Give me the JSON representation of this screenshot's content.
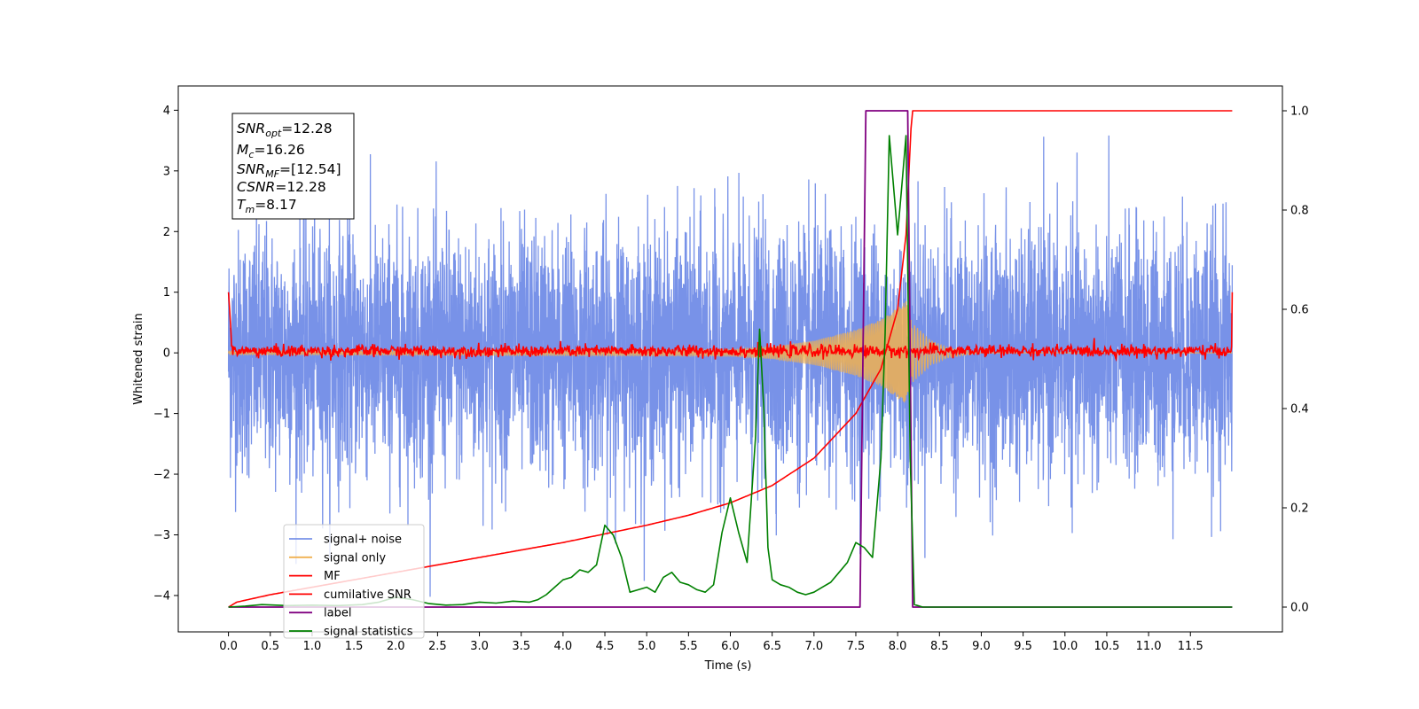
{
  "chart_data": {
    "type": "line",
    "title": "",
    "xlabel": "Time (s)",
    "ylabel": "Whitened strain",
    "xlim": [
      -0.6,
      12.6
    ],
    "ylim_left": [
      -4.6,
      4.4
    ],
    "ylim_right": [
      -0.05,
      1.05
    ],
    "x_ticks": [
      "0.0",
      "0.5",
      "1.0",
      "1.5",
      "2.0",
      "2.5",
      "3.0",
      "3.5",
      "4.0",
      "4.5",
      "5.0",
      "5.5",
      "6.0",
      "6.5",
      "7.0",
      "7.5",
      "8.0",
      "8.5",
      "9.0",
      "9.5",
      "10.0",
      "10.5",
      "11.0",
      "11.5"
    ],
    "y_ticks_left": [
      "4",
      "3",
      "2",
      "1",
      "0",
      "−1",
      "−2",
      "−3",
      "−4"
    ],
    "y_ticks_right": [
      "1.0",
      "0.8",
      "0.6",
      "0.4",
      "0.2",
      "0.0"
    ],
    "colors": {
      "signal_noise": "#7892e8",
      "signal_only": "#f0b050",
      "mf": "#ff0000",
      "cumulative_snr": "#ff0000",
      "label": "#800080",
      "signal_statistics": "#008000"
    },
    "legend": {
      "placement": "lower-left",
      "entries": [
        "signal+ noise",
        "signal only",
        "MF",
        "cumilative SNR",
        "label",
        "signal statistics"
      ]
    },
    "annotations": {
      "placement": "upper-left",
      "lines": [
        {
          "main": "SNR",
          "sub": "opt",
          "value": "=12.28"
        },
        {
          "main": "M",
          "sub": "c",
          "value": "=16.26"
        },
        {
          "main": "SNR",
          "sub": "MF",
          "value": "=[12.54]"
        },
        {
          "main": "CSNR",
          "sub": "",
          "value": "=12.28"
        },
        {
          "main": "T",
          "sub": "m",
          "value": "=8.17"
        }
      ]
    },
    "series": [
      {
        "name": "signal+ noise",
        "axis": "left",
        "x_range": [
          0,
          12
        ],
        "noise_std": 1.0,
        "y_extent": [
          -4.1,
          3.95
        ]
      },
      {
        "name": "signal only",
        "axis": "left",
        "envelope": {
          "x": [
            0,
            6.0,
            6.5,
            7.0,
            7.5,
            7.8,
            8.0,
            8.1,
            8.17,
            8.4,
            8.6,
            9.0
          ],
          "amp": [
            0.03,
            0.05,
            0.1,
            0.2,
            0.38,
            0.55,
            0.75,
            0.85,
            0.5,
            0.2,
            0.08,
            0.0
          ]
        }
      },
      {
        "name": "MF",
        "axis": "left",
        "x_range": [
          0,
          12
        ],
        "y_start": 1.0,
        "y_end": 1.0,
        "band": [
          -0.1,
          0.2
        ]
      },
      {
        "name": "cumilative SNR",
        "axis": "right",
        "x": [
          0,
          0.1,
          0.5,
          1.0,
          2.0,
          3.0,
          4.0,
          5.0,
          5.5,
          6.0,
          6.5,
          7.0,
          7.5,
          7.8,
          8.0,
          8.1,
          8.17,
          12.0
        ],
        "y": [
          0.0,
          0.01,
          0.025,
          0.04,
          0.07,
          0.1,
          0.13,
          0.165,
          0.185,
          0.21,
          0.245,
          0.3,
          0.39,
          0.48,
          0.6,
          0.75,
          1.0,
          1.0
        ]
      },
      {
        "name": "label",
        "axis": "right",
        "x": [
          0,
          7.55,
          7.62,
          8.12,
          8.18,
          12.0
        ],
        "y": [
          0,
          0,
          1,
          1,
          0,
          0
        ]
      },
      {
        "name": "signal statistics",
        "axis": "right",
        "x": [
          0,
          0.2,
          0.4,
          0.7,
          1.0,
          1.3,
          1.6,
          1.8,
          2.0,
          2.2,
          2.4,
          2.6,
          2.8,
          3.0,
          3.2,
          3.4,
          3.6,
          3.7,
          3.8,
          3.9,
          4.0,
          4.1,
          4.2,
          4.3,
          4.4,
          4.5,
          4.6,
          4.7,
          4.8,
          4.9,
          5.0,
          5.1,
          5.2,
          5.3,
          5.4,
          5.5,
          5.6,
          5.7,
          5.8,
          5.9,
          6.0,
          6.1,
          6.2,
          6.3,
          6.35,
          6.4,
          6.45,
          6.5,
          6.6,
          6.7,
          6.8,
          6.9,
          7.0,
          7.1,
          7.2,
          7.3,
          7.4,
          7.5,
          7.6,
          7.7,
          7.8,
          7.85,
          7.9,
          8.0,
          8.05,
          8.1,
          8.15,
          8.2,
          8.3,
          8.5,
          9.0,
          10.0,
          11.0,
          12.0
        ],
        "y": [
          0.0,
          0.002,
          0.005,
          0.003,
          0.004,
          0.003,
          0.005,
          0.01,
          0.02,
          0.015,
          0.007,
          0.004,
          0.005,
          0.01,
          0.008,
          0.012,
          0.01,
          0.015,
          0.025,
          0.04,
          0.055,
          0.06,
          0.075,
          0.07,
          0.085,
          0.165,
          0.145,
          0.1,
          0.03,
          0.035,
          0.04,
          0.03,
          0.06,
          0.07,
          0.05,
          0.045,
          0.035,
          0.03,
          0.045,
          0.15,
          0.22,
          0.15,
          0.09,
          0.34,
          0.56,
          0.4,
          0.12,
          0.055,
          0.045,
          0.04,
          0.03,
          0.025,
          0.03,
          0.04,
          0.05,
          0.07,
          0.09,
          0.13,
          0.12,
          0.1,
          0.3,
          0.55,
          0.95,
          0.75,
          0.85,
          0.95,
          0.3,
          0.005,
          0.0,
          0.0,
          0.0,
          0.0,
          0.0,
          0.0
        ]
      }
    ]
  }
}
